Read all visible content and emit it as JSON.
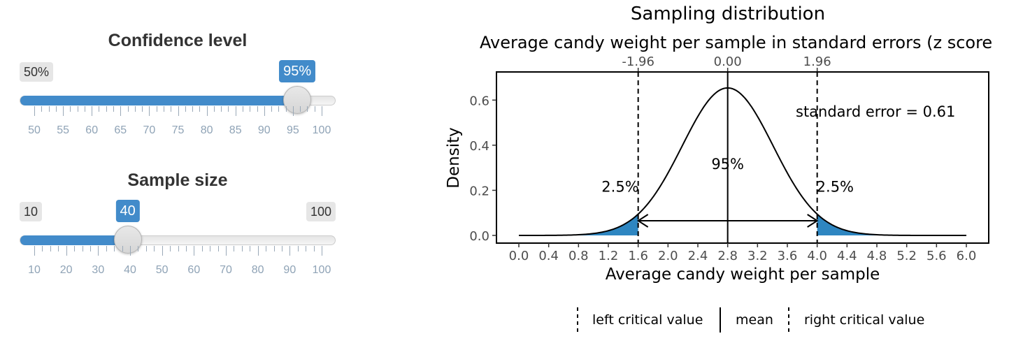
{
  "confidence": {
    "title": "Confidence level",
    "min_label": "50%",
    "value_label": "95%",
    "fraction": 0.9,
    "tick_labels": [
      "50",
      "55",
      "60",
      "65",
      "70",
      "75",
      "80",
      "85",
      "90",
      "95",
      "100"
    ]
  },
  "sample": {
    "title": "Sample size",
    "min_label": "10",
    "max_label": "100",
    "value_label": "40",
    "fraction": 0.3333,
    "tick_labels": [
      "10",
      "20",
      "30",
      "40",
      "50",
      "60",
      "70",
      "80",
      "90",
      "100"
    ]
  },
  "colors": {
    "accent": "#428bca",
    "tail_fill": "#2e86c1"
  },
  "chart_data": {
    "type": "area",
    "title": "Sampling distribution",
    "subtitle": "Average candy weight per sample in standard errors (z score",
    "xlabel": "Average candy weight per sample",
    "ylabel": "Density",
    "x_ticks": [
      "0.0",
      "0.4",
      "0.8",
      "1.2",
      "1.6",
      "2.0",
      "2.4",
      "2.8",
      "3.2",
      "3.6",
      "4.0",
      "4.4",
      "4.8",
      "5.2",
      "5.6",
      "6.0"
    ],
    "y_ticks": [
      "0.0",
      "0.2",
      "0.4",
      "0.6"
    ],
    "top_ticks": [
      "-1.96",
      "0.00",
      "1.96"
    ],
    "xlim": [
      0,
      6
    ],
    "ylim": [
      0,
      0.7
    ],
    "mean": 2.8,
    "standard_error": 0.61,
    "left_critical": 1.6,
    "right_critical": 4.0,
    "se_annotation": "standard error = 0.61",
    "center_label": "95%",
    "left_tail_label": "2.5%",
    "right_tail_label": "2.5%",
    "legend": [
      "left critical value",
      "mean",
      "right critical value"
    ]
  }
}
